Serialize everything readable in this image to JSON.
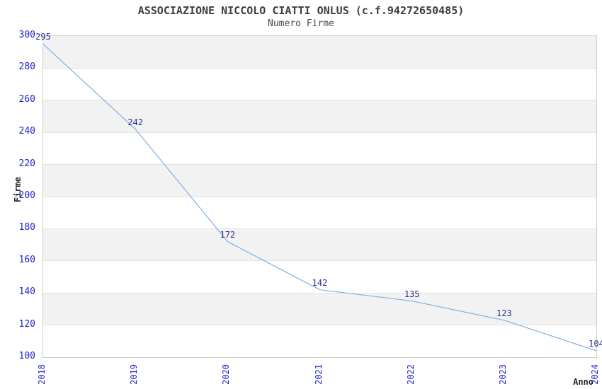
{
  "header": {
    "title": "ASSOCIAZIONE NICCOLO CIATTI ONLUS (c.f.94272650485)",
    "subtitle": "Numero Firme"
  },
  "chart_data": {
    "type": "line",
    "title": "ASSOCIAZIONE NICCOLO CIATTI ONLUS (c.f.94272650485)",
    "subtitle": "Numero Firme",
    "xlabel": "Anno",
    "ylabel": "Firme",
    "x": [
      "2018",
      "2019",
      "2020",
      "2021",
      "2022",
      "2023",
      "2024"
    ],
    "series": [
      {
        "name": "Numero Firme",
        "values": [
          295,
          242,
          172,
          142,
          135,
          123,
          104
        ]
      }
    ],
    "ylim": [
      100,
      300
    ],
    "ytick_step": 20,
    "yticks": [
      100,
      120,
      140,
      160,
      180,
      200,
      220,
      240,
      260,
      280,
      300
    ],
    "grid": "horizontal-only",
    "alternating_bands": true,
    "legend_position": "none",
    "colors": {
      "line": "#7fb0e3",
      "tick_label": "#2222cc",
      "data_label": "#2e2e8a",
      "title": "#3d3d3d",
      "subtitle": "#4a4a4a",
      "axis_label": "#222222",
      "band": "#f2f2f2",
      "grid": "#e2e2e2",
      "border": "#cccccc",
      "background": "#ffffff"
    }
  }
}
